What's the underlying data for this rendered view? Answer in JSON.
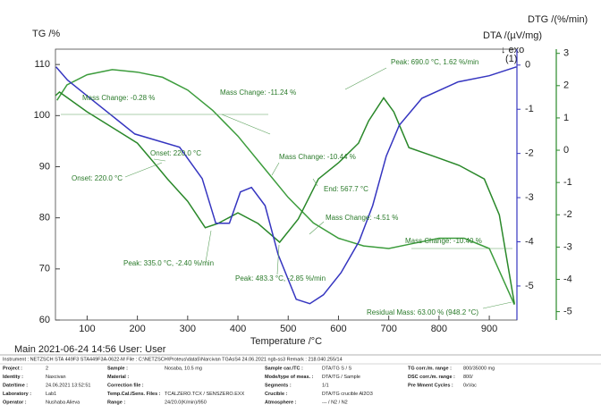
{
  "chart_data": {
    "type": "line",
    "y_label": "TG /%",
    "y2_label": "DTA /(µV/mg)",
    "y3_label": "DTG /(%/min)",
    "exo_label": "↓ exo",
    "exo_note": "(1)",
    "x_label": "Temperature /°C",
    "xlim": [
      37,
      955
    ],
    "xticks": [
      100,
      200,
      300,
      400,
      500,
      600,
      700,
      800,
      900
    ],
    "ylim": [
      60,
      113
    ],
    "yticks": [
      60,
      70,
      80,
      90,
      100,
      110
    ],
    "y2lim": [
      -5.77,
      0.36
    ],
    "y2ticks": [
      0,
      -1,
      -2,
      -3,
      -4,
      -5
    ],
    "y3lim": [
      -5.26,
      3.13
    ],
    "y3ticks": [
      3,
      2,
      1,
      0,
      -1,
      -2,
      -3,
      -4,
      -5
    ],
    "series": [
      {
        "name": "TG",
        "axis": "y",
        "color": "#3c9c3c",
        "x": [
          40,
          60,
          100,
          150,
          200,
          250,
          300,
          350,
          400,
          450,
          500,
          550,
          600,
          650,
          700,
          750,
          800,
          850,
          900,
          950
        ],
        "values": [
          103,
          106,
          108,
          109,
          108.5,
          107.5,
          105,
          101,
          96,
          90,
          84,
          79,
          76,
          74.5,
          74,
          75,
          76,
          76,
          74,
          63
        ]
      },
      {
        "name": "DTG",
        "axis": "y3",
        "color": "#2a882a",
        "x": [
          37,
          45,
          100,
          200,
          230,
          260,
          300,
          335,
          360,
          400,
          440,
          483,
          520,
          560,
          600,
          640,
          660,
          690,
          710,
          740,
          790,
          840,
          890,
          920,
          950
        ],
        "values": [
          1.69,
          1.8,
          1.19,
          0.22,
          -0.33,
          -0.89,
          -1.58,
          -2.4,
          -2.27,
          -1.94,
          -2.27,
          -2.85,
          -2.13,
          -0.89,
          -0.39,
          0.22,
          0.91,
          1.62,
          1.19,
          0.08,
          -0.19,
          -0.47,
          -0.89,
          -2.0,
          -4.76
        ]
      },
      {
        "name": "DTA",
        "axis": "y2",
        "color": "#3535c0",
        "x": [
          38,
          61,
          106,
          195,
          284,
          329,
          356,
          383,
          405,
          427,
          454,
          480,
          516,
          543,
          570,
          605,
          641,
          668,
          695,
          721,
          766,
          838,
          900,
          954
        ],
        "values": [
          -0.04,
          -0.34,
          -0.75,
          -1.56,
          -1.86,
          -2.57,
          -3.58,
          -3.58,
          -2.87,
          -2.77,
          -3.18,
          -4.29,
          -5.3,
          -5.4,
          -5.2,
          -4.7,
          -3.99,
          -3.18,
          -2.06,
          -1.36,
          -0.75,
          -0.38,
          -0.24,
          -0.04
        ]
      }
    ],
    "annotations": [
      "Mass Change: -0.28 %",
      "Mass Change: -11.24 %",
      "Onset: 220.0 °C",
      "Onset: 220.0 °C",
      "Mass Change: -10.44 %",
      "End: 567.7 °C",
      "Peak: 690.0 °C, 1.62 %/min",
      "Mass Change: -4.51 %",
      "Mass Change: -10.40 %",
      "Peak: 335.0 °C, -2.40 %/min",
      "Peak: 483.3 °C, -2.85 %/min",
      "Residual Mass: 63.00 % (948.2 °C)"
    ]
  },
  "footer": {
    "stamp": "Main  2021-06-24 14:56  User: User",
    "instrument": "Instrument :  NETZSCH STA 449F3 STA449F3A-0622-M   File :  C:\\NETZSCH\\Proteus\\data5\\Narcivan TGAsS4   24.06.2021 ngb-ss3   Remark :  218.040.255/14",
    "columns": [
      [
        [
          "Project :",
          "2"
        ],
        [
          "Identity :",
          "Naxcivan"
        ],
        [
          "Date/time :",
          "24.06.2021 13:52:51"
        ],
        [
          "Laboratory :",
          "Lab1"
        ],
        [
          "Operator :",
          "Nushaba Alieva"
        ]
      ],
      [
        [
          "Sample :",
          "Nosaba, 10.5 mg"
        ],
        [
          "Material :"
        ],
        [
          "Correction file :"
        ],
        [
          "Temp.Cal./Sens. Files :",
          "TCALZERO.TCX / SENSZERO.EXX"
        ],
        [
          "Range :",
          "24/20.0(K/min)/950"
        ]
      ],
      [
        [
          "Sample car./TC :",
          "DTA/TG S / S"
        ],
        [
          "Mode/type of meas. :",
          "DTA/TG / Sample"
        ],
        [
          "Segments :",
          "1/1"
        ],
        [
          "Crucible :",
          "DTA/TG crucible Al2O3"
        ],
        [
          "Atmosphere :",
          "--- / N2 / N2"
        ]
      ],
      [
        [
          "TG corr./m. range :",
          "800/35000 mg"
        ],
        [
          "DSC corr./m. range :",
          "800/"
        ],
        [
          "Pre Mment Cycles :",
          "0xVac"
        ]
      ]
    ]
  }
}
